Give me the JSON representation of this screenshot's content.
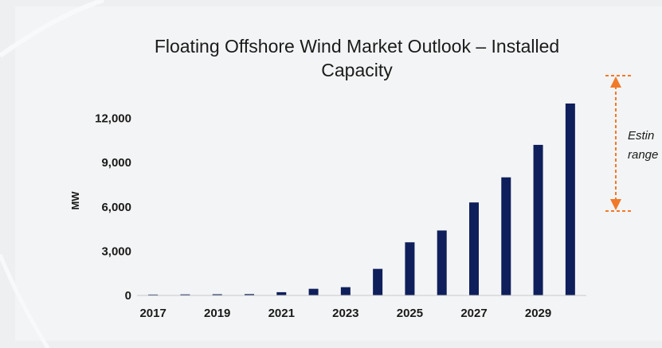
{
  "chart_data": {
    "type": "bar",
    "title_lines": [
      "Floating Offshore Wind Market Outlook – Installed",
      "Capacity"
    ],
    "xlabel": "",
    "ylabel": "MW",
    "categories": [
      "2017",
      "2018",
      "2019",
      "2020",
      "2021",
      "2022",
      "2023",
      "2024",
      "2025",
      "2026",
      "2027",
      "2028",
      "2029",
      "2030"
    ],
    "x_tick_labels": [
      "2017",
      "",
      "2019",
      "",
      "2021",
      "",
      "2023",
      "",
      "2025",
      "",
      "2027",
      "",
      "2029",
      ""
    ],
    "series": [
      {
        "values": [
          60,
          70,
          80,
          90,
          220,
          450,
          560,
          1800,
          3600,
          4400,
          6300,
          8000,
          10200,
          13000
        ]
      }
    ],
    "y_ticks": [
      0,
      3000,
      6000,
      9000,
      12000
    ],
    "y_tick_labels": [
      "0",
      "3,000",
      "6,000",
      "9,000",
      "12,000"
    ],
    "ylim": [
      0,
      13000
    ],
    "grid": false,
    "legend": "none",
    "bar_color": "#0e1f5b",
    "annotation": {
      "lines": [
        "Estin",
        "range"
      ],
      "color": "#f07a2a",
      "range_values": [
        5700,
        13000
      ]
    }
  }
}
